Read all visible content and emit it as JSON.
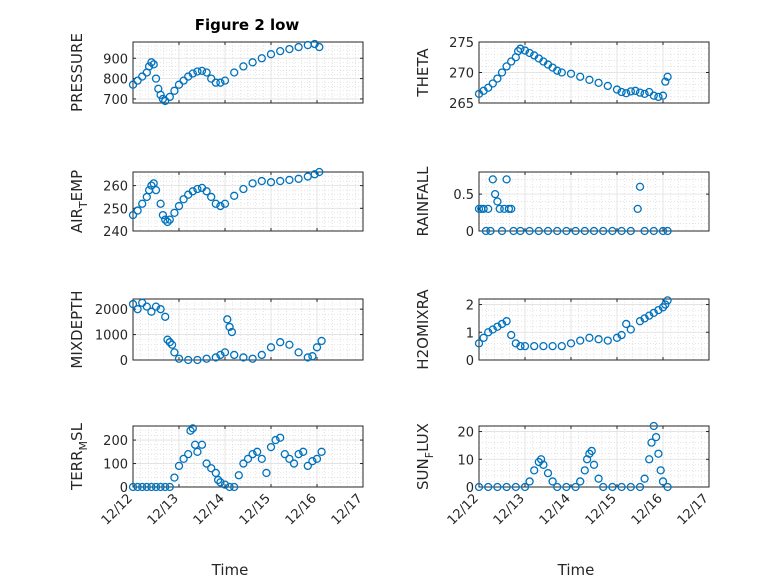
{
  "figure": {
    "title": "Figure 2 low"
  },
  "style": {
    "marker_color": "#0072BD",
    "axis_color": "#262626"
  },
  "chart_data": [
    {
      "type": "scatter",
      "name": "pressure",
      "ylabel": {
        "main": "PRESSURE",
        "sub": "",
        "tail": ""
      },
      "ylim": [
        680,
        980
      ],
      "yticks": [
        700,
        800,
        900
      ],
      "xlim": [
        "12/12",
        "12/17"
      ],
      "xticks": [
        "12/12",
        "12/13",
        "12/14",
        "12/15",
        "12/16",
        "12/17"
      ],
      "xlabel": "",
      "grid": true,
      "points": [
        [
          0.0,
          770
        ],
        [
          0.1,
          790
        ],
        [
          0.2,
          810
        ],
        [
          0.3,
          830
        ],
        [
          0.35,
          860
        ],
        [
          0.4,
          880
        ],
        [
          0.45,
          870
        ],
        [
          0.5,
          800
        ],
        [
          0.55,
          750
        ],
        [
          0.6,
          720
        ],
        [
          0.65,
          700
        ],
        [
          0.7,
          690
        ],
        [
          0.8,
          710
        ],
        [
          0.9,
          740
        ],
        [
          1.0,
          770
        ],
        [
          1.1,
          790
        ],
        [
          1.2,
          810
        ],
        [
          1.3,
          825
        ],
        [
          1.4,
          835
        ],
        [
          1.5,
          838
        ],
        [
          1.6,
          830
        ],
        [
          1.7,
          800
        ],
        [
          1.8,
          780
        ],
        [
          1.9,
          780
        ],
        [
          2.0,
          790
        ],
        [
          2.2,
          830
        ],
        [
          2.4,
          860
        ],
        [
          2.6,
          880
        ],
        [
          2.8,
          900
        ],
        [
          3.0,
          920
        ],
        [
          3.2,
          935
        ],
        [
          3.4,
          945
        ],
        [
          3.6,
          955
        ],
        [
          3.8,
          965
        ],
        [
          3.95,
          970
        ],
        [
          4.05,
          955
        ]
      ]
    },
    {
      "type": "scatter",
      "name": "theta",
      "ylabel": {
        "main": "THETA",
        "sub": "",
        "tail": ""
      },
      "ylim": [
        265,
        275
      ],
      "yticks": [
        265,
        270,
        275
      ],
      "xlim": [
        "12/12",
        "12/17"
      ],
      "xticks": [
        "12/12",
        "12/13",
        "12/14",
        "12/15",
        "12/16",
        "12/17"
      ],
      "xlabel": "",
      "grid": true,
      "points": [
        [
          0.0,
          266.5
        ],
        [
          0.1,
          267
        ],
        [
          0.2,
          267.5
        ],
        [
          0.3,
          268.2
        ],
        [
          0.4,
          269
        ],
        [
          0.5,
          270
        ],
        [
          0.6,
          271
        ],
        [
          0.7,
          271.8
        ],
        [
          0.8,
          272.5
        ],
        [
          0.85,
          273.5
        ],
        [
          0.9,
          273.9
        ],
        [
          1.0,
          273.6
        ],
        [
          1.1,
          273.2
        ],
        [
          1.2,
          272.8
        ],
        [
          1.3,
          272.3
        ],
        [
          1.4,
          271.8
        ],
        [
          1.5,
          271.3
        ],
        [
          1.6,
          270.8
        ],
        [
          1.7,
          270.3
        ],
        [
          1.8,
          270
        ],
        [
          2.0,
          269.8
        ],
        [
          2.2,
          269.3
        ],
        [
          2.4,
          268.8
        ],
        [
          2.6,
          268.3
        ],
        [
          2.8,
          267.8
        ],
        [
          3.0,
          267.2
        ],
        [
          3.1,
          266.8
        ],
        [
          3.2,
          266.6
        ],
        [
          3.3,
          266.9
        ],
        [
          3.4,
          267
        ],
        [
          3.5,
          266.7
        ],
        [
          3.6,
          266.5
        ],
        [
          3.7,
          266.8
        ],
        [
          3.8,
          266.2
        ],
        [
          3.9,
          266
        ],
        [
          4.0,
          266.2
        ],
        [
          4.05,
          268.5
        ],
        [
          4.1,
          269.3
        ]
      ]
    },
    {
      "type": "scatter",
      "name": "air_temp",
      "ylabel": {
        "main": "AIR",
        "sub": "T",
        "tail": "EMP"
      },
      "ylim": [
        240,
        266
      ],
      "yticks": [
        240,
        250,
        260
      ],
      "xlim": [
        "12/12",
        "12/17"
      ],
      "xticks": [
        "12/12",
        "12/13",
        "12/14",
        "12/15",
        "12/16",
        "12/17"
      ],
      "xlabel": "",
      "grid": true,
      "points": [
        [
          0.0,
          247
        ],
        [
          0.1,
          249
        ],
        [
          0.2,
          252
        ],
        [
          0.3,
          255
        ],
        [
          0.35,
          258
        ],
        [
          0.4,
          260
        ],
        [
          0.45,
          261
        ],
        [
          0.5,
          258
        ],
        [
          0.6,
          252
        ],
        [
          0.65,
          247
        ],
        [
          0.7,
          245
        ],
        [
          0.75,
          244
        ],
        [
          0.8,
          245
        ],
        [
          0.9,
          248
        ],
        [
          1.0,
          251
        ],
        [
          1.1,
          254
        ],
        [
          1.2,
          256
        ],
        [
          1.3,
          257.5
        ],
        [
          1.4,
          258.5
        ],
        [
          1.5,
          259
        ],
        [
          1.6,
          257.5
        ],
        [
          1.7,
          255
        ],
        [
          1.8,
          252
        ],
        [
          1.9,
          251
        ],
        [
          2.0,
          252
        ],
        [
          2.2,
          255.5
        ],
        [
          2.4,
          258.5
        ],
        [
          2.6,
          261
        ],
        [
          2.8,
          262
        ],
        [
          3.0,
          261.5
        ],
        [
          3.2,
          262
        ],
        [
          3.4,
          262.5
        ],
        [
          3.6,
          263
        ],
        [
          3.8,
          264
        ],
        [
          3.95,
          265
        ],
        [
          4.05,
          266
        ]
      ]
    },
    {
      "type": "scatter",
      "name": "rainfall",
      "ylabel": {
        "main": "RAINFALL",
        "sub": "",
        "tail": ""
      },
      "ylim": [
        0,
        0.8
      ],
      "yticks": [
        0,
        0.5
      ],
      "xlim": [
        "12/12",
        "12/17"
      ],
      "xticks": [
        "12/12",
        "12/13",
        "12/14",
        "12/15",
        "12/16",
        "12/17"
      ],
      "xlabel": "",
      "grid": true,
      "points": [
        [
          0.0,
          0.3
        ],
        [
          0.05,
          0.3
        ],
        [
          0.1,
          0.3
        ],
        [
          0.15,
          0
        ],
        [
          0.2,
          0.3
        ],
        [
          0.25,
          0
        ],
        [
          0.3,
          0.7
        ],
        [
          0.35,
          0.5
        ],
        [
          0.4,
          0.4
        ],
        [
          0.45,
          0.3
        ],
        [
          0.5,
          0
        ],
        [
          0.55,
          0.3
        ],
        [
          0.6,
          0.7
        ],
        [
          0.65,
          0.3
        ],
        [
          0.7,
          0.3
        ],
        [
          0.75,
          0
        ],
        [
          0.9,
          0
        ],
        [
          1.1,
          0
        ],
        [
          1.3,
          0
        ],
        [
          1.5,
          0
        ],
        [
          1.7,
          0
        ],
        [
          1.9,
          0
        ],
        [
          2.1,
          0
        ],
        [
          2.3,
          0
        ],
        [
          2.5,
          0
        ],
        [
          2.7,
          0
        ],
        [
          2.9,
          0
        ],
        [
          3.1,
          0
        ],
        [
          3.3,
          0
        ],
        [
          3.45,
          0.3
        ],
        [
          3.5,
          0.6
        ],
        [
          3.6,
          0
        ],
        [
          3.8,
          0
        ],
        [
          4.0,
          0
        ],
        [
          4.1,
          0
        ]
      ]
    },
    {
      "type": "scatter",
      "name": "mixdepth",
      "ylabel": {
        "main": "MIXDEPTH",
        "sub": "",
        "tail": ""
      },
      "ylim": [
        0,
        2400
      ],
      "yticks": [
        0,
        1000,
        2000
      ],
      "xlim": [
        "12/12",
        "12/17"
      ],
      "xticks": [
        "12/12",
        "12/13",
        "12/14",
        "12/15",
        "12/16",
        "12/17"
      ],
      "xlabel": "",
      "grid": true,
      "points": [
        [
          0.0,
          2200
        ],
        [
          0.1,
          2000
        ],
        [
          0.2,
          2250
        ],
        [
          0.3,
          2100
        ],
        [
          0.4,
          1900
        ],
        [
          0.5,
          2100
        ],
        [
          0.6,
          2000
        ],
        [
          0.7,
          1700
        ],
        [
          0.75,
          800
        ],
        [
          0.8,
          700
        ],
        [
          0.85,
          600
        ],
        [
          0.9,
          300
        ],
        [
          1.0,
          50
        ],
        [
          1.2,
          0
        ],
        [
          1.4,
          0
        ],
        [
          1.6,
          50
        ],
        [
          1.8,
          100
        ],
        [
          1.9,
          200
        ],
        [
          2.0,
          300
        ],
        [
          2.05,
          1600
        ],
        [
          2.1,
          1300
        ],
        [
          2.15,
          1100
        ],
        [
          2.2,
          200
        ],
        [
          2.4,
          100
        ],
        [
          2.6,
          50
        ],
        [
          2.8,
          200
        ],
        [
          3.0,
          500
        ],
        [
          3.2,
          700
        ],
        [
          3.4,
          600
        ],
        [
          3.6,
          300
        ],
        [
          3.8,
          100
        ],
        [
          3.9,
          150
        ],
        [
          4.0,
          500
        ],
        [
          4.1,
          750
        ]
      ]
    },
    {
      "type": "scatter",
      "name": "h2omixra",
      "ylabel": {
        "main": "H2OMIXRA",
        "sub": "",
        "tail": ""
      },
      "ylim": [
        0,
        2.2
      ],
      "yticks": [
        0,
        1,
        2
      ],
      "xlim": [
        "12/12",
        "12/17"
      ],
      "xticks": [
        "12/12",
        "12/13",
        "12/14",
        "12/15",
        "12/16",
        "12/17"
      ],
      "xlabel": "",
      "grid": true,
      "points": [
        [
          0.0,
          0.6
        ],
        [
          0.1,
          0.8
        ],
        [
          0.2,
          1.0
        ],
        [
          0.3,
          1.1
        ],
        [
          0.4,
          1.2
        ],
        [
          0.5,
          1.3
        ],
        [
          0.6,
          1.4
        ],
        [
          0.7,
          0.9
        ],
        [
          0.8,
          0.6
        ],
        [
          0.9,
          0.5
        ],
        [
          1.0,
          0.5
        ],
        [
          1.2,
          0.5
        ],
        [
          1.4,
          0.5
        ],
        [
          1.6,
          0.5
        ],
        [
          1.8,
          0.5
        ],
        [
          2.0,
          0.6
        ],
        [
          2.2,
          0.7
        ],
        [
          2.4,
          0.8
        ],
        [
          2.6,
          0.75
        ],
        [
          2.8,
          0.7
        ],
        [
          3.0,
          0.8
        ],
        [
          3.1,
          0.9
        ],
        [
          3.2,
          1.3
        ],
        [
          3.3,
          1.1
        ],
        [
          3.5,
          1.4
        ],
        [
          3.6,
          1.5
        ],
        [
          3.7,
          1.6
        ],
        [
          3.8,
          1.7
        ],
        [
          3.9,
          1.8
        ],
        [
          4.0,
          1.9
        ],
        [
          4.05,
          2.0
        ],
        [
          4.1,
          2.15
        ]
      ]
    },
    {
      "type": "scatter",
      "name": "terr_msl",
      "ylabel": {
        "main": "TERR",
        "sub": "M",
        "tail": "SL"
      },
      "ylim": [
        0,
        260
      ],
      "yticks": [
        0,
        100,
        200
      ],
      "xlim": [
        "12/12",
        "12/17"
      ],
      "xticks": [
        "12/12",
        "12/13",
        "12/14",
        "12/15",
        "12/16",
        "12/17"
      ],
      "xlabel": "Time",
      "grid": true,
      "points": [
        [
          0.0,
          0
        ],
        [
          0.1,
          0
        ],
        [
          0.2,
          0
        ],
        [
          0.3,
          0
        ],
        [
          0.4,
          0
        ],
        [
          0.5,
          0
        ],
        [
          0.6,
          0
        ],
        [
          0.7,
          0
        ],
        [
          0.8,
          0
        ],
        [
          0.9,
          40
        ],
        [
          1.0,
          90
        ],
        [
          1.1,
          120
        ],
        [
          1.2,
          140
        ],
        [
          1.25,
          240
        ],
        [
          1.3,
          250
        ],
        [
          1.35,
          180
        ],
        [
          1.4,
          150
        ],
        [
          1.5,
          180
        ],
        [
          1.6,
          100
        ],
        [
          1.7,
          80
        ],
        [
          1.8,
          60
        ],
        [
          1.85,
          30
        ],
        [
          1.9,
          20
        ],
        [
          2.0,
          10
        ],
        [
          2.1,
          0
        ],
        [
          2.2,
          0
        ],
        [
          2.3,
          50
        ],
        [
          2.4,
          100
        ],
        [
          2.5,
          120
        ],
        [
          2.6,
          140
        ],
        [
          2.7,
          150
        ],
        [
          2.8,
          120
        ],
        [
          2.9,
          60
        ],
        [
          3.0,
          170
        ],
        [
          3.1,
          200
        ],
        [
          3.2,
          210
        ],
        [
          3.3,
          140
        ],
        [
          3.4,
          120
        ],
        [
          3.5,
          100
        ],
        [
          3.6,
          140
        ],
        [
          3.7,
          150
        ],
        [
          3.8,
          90
        ],
        [
          3.9,
          110
        ],
        [
          4.0,
          120
        ],
        [
          4.1,
          150
        ]
      ]
    },
    {
      "type": "scatter",
      "name": "sun_flux",
      "ylabel": {
        "main": "SUN",
        "sub": "F",
        "tail": "LUX"
      },
      "ylim": [
        0,
        22
      ],
      "yticks": [
        0,
        10,
        20
      ],
      "xlim": [
        "12/12",
        "12/17"
      ],
      "xticks": [
        "12/12",
        "12/13",
        "12/14",
        "12/15",
        "12/16",
        "12/17"
      ],
      "xlabel": "Time",
      "grid": true,
      "points": [
        [
          0.0,
          0
        ],
        [
          0.2,
          0
        ],
        [
          0.4,
          0
        ],
        [
          0.6,
          0
        ],
        [
          0.8,
          0
        ],
        [
          1.0,
          0
        ],
        [
          1.1,
          2
        ],
        [
          1.2,
          6
        ],
        [
          1.3,
          9
        ],
        [
          1.35,
          10
        ],
        [
          1.4,
          8
        ],
        [
          1.5,
          5
        ],
        [
          1.6,
          2
        ],
        [
          1.7,
          0
        ],
        [
          1.9,
          0
        ],
        [
          2.1,
          0
        ],
        [
          2.2,
          2
        ],
        [
          2.3,
          6
        ],
        [
          2.35,
          10
        ],
        [
          2.4,
          12
        ],
        [
          2.45,
          13
        ],
        [
          2.5,
          8
        ],
        [
          2.6,
          3
        ],
        [
          2.7,
          0
        ],
        [
          2.9,
          0
        ],
        [
          3.1,
          0
        ],
        [
          3.3,
          0
        ],
        [
          3.5,
          0
        ],
        [
          3.6,
          3
        ],
        [
          3.7,
          10
        ],
        [
          3.75,
          16
        ],
        [
          3.8,
          22
        ],
        [
          3.85,
          18
        ],
        [
          3.9,
          12
        ],
        [
          3.95,
          6
        ],
        [
          4.0,
          2
        ],
        [
          4.1,
          0
        ]
      ]
    }
  ]
}
